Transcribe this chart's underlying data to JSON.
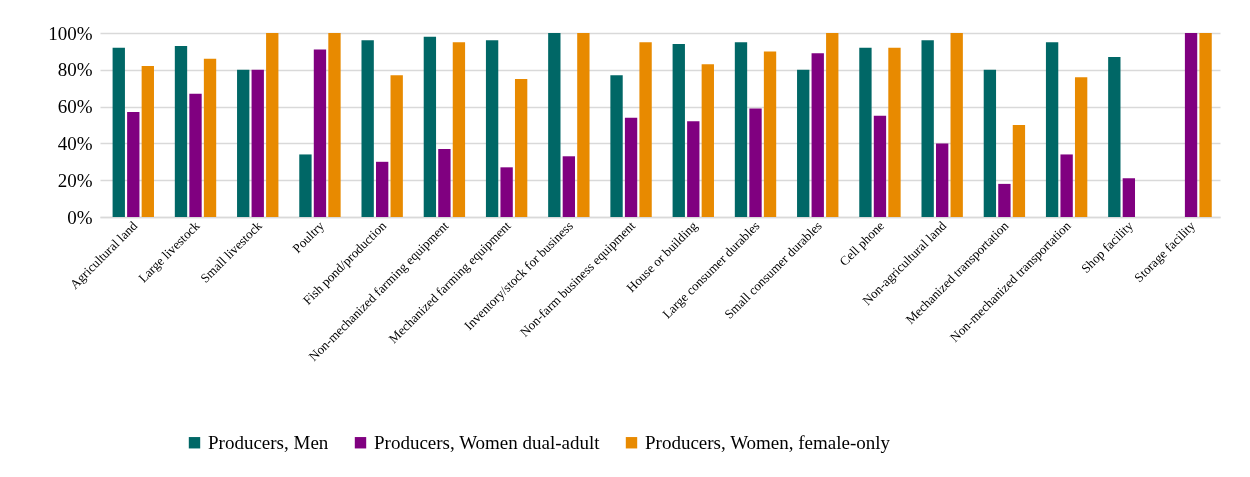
{
  "chart_data": {
    "type": "bar",
    "categories": [
      "Agricultural land",
      "Large livestock",
      "Small livestock",
      "Poultry",
      "Fish pond/production",
      "Non-mechanized farming equipment",
      "Mechanized farming equipment",
      "Inventory/stock for business",
      "Non-farm business equipment",
      "House or building",
      "Large consumer durables",
      "Small consumer durables",
      "Cell phone",
      "Non-agricultural land",
      "Mechanized transportation",
      "Non-mechanized transportation",
      "Shop facility",
      "Storage facility"
    ],
    "series": [
      {
        "name": "Producers, Men",
        "color": "#006766",
        "values": [
          92,
          93,
          80,
          34,
          96,
          98,
          96,
          100,
          77,
          94,
          95,
          80,
          92,
          96,
          80,
          95,
          87,
          null
        ]
      },
      {
        "name": "Producers, Women dual-adult",
        "color": "#800080",
        "values": [
          57,
          67,
          80,
          91,
          30,
          37,
          27,
          33,
          54,
          52,
          59,
          89,
          55,
          40,
          18,
          34,
          21,
          100
        ]
      },
      {
        "name": "Producers, Women, female-only",
        "color": "#e88a00",
        "values": [
          82,
          86,
          100,
          100,
          77,
          95,
          75,
          100,
          95,
          83,
          90,
          100,
          92,
          100,
          50,
          76,
          null,
          100
        ]
      }
    ],
    "ylim": [
      0,
      100
    ],
    "yticks": [
      {
        "value": 0,
        "label": "0%"
      },
      {
        "value": 20,
        "label": "20%"
      },
      {
        "value": 40,
        "label": "40%"
      },
      {
        "value": 60,
        "label": "60%"
      },
      {
        "value": 80,
        "label": "80%"
      },
      {
        "value": 100,
        "label": "100%"
      }
    ],
    "grid": "y",
    "legend": "bottom"
  }
}
